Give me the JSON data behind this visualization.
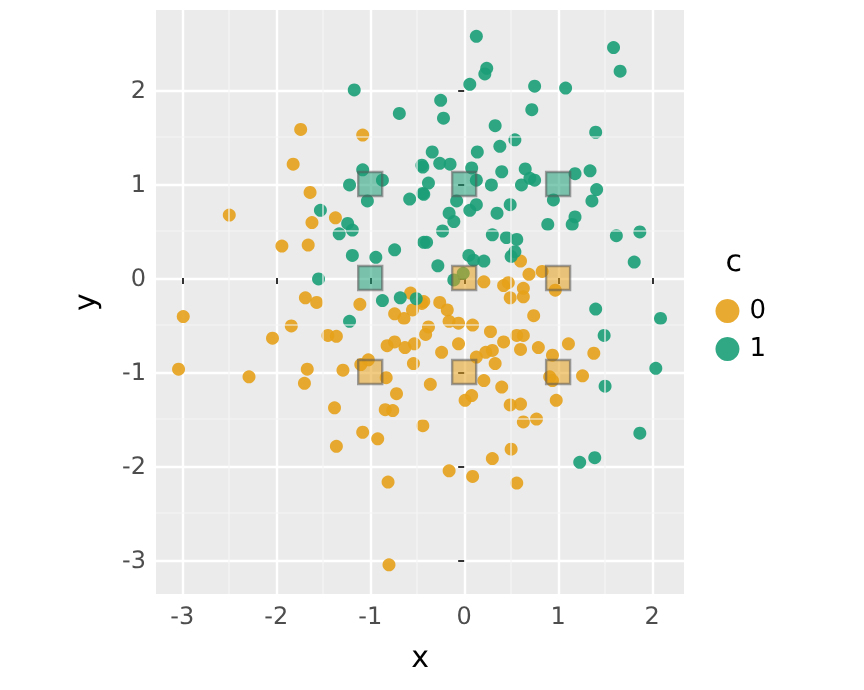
{
  "chart_data": {
    "type": "scatter",
    "xlabel": "x",
    "ylabel": "y",
    "legend_title": "c",
    "legend": "right",
    "grid": true,
    "marker": "circle",
    "xlim": [
      -3.28,
      2.34
    ],
    "ylim": [
      -3.36,
      2.85
    ],
    "xticks": [
      -3,
      -2,
      -1,
      0,
      1,
      2
    ],
    "yticks": [
      -3,
      -2,
      -1,
      0,
      1,
      2
    ],
    "series": [
      {
        "name": "0",
        "color": "#e6a11a",
        "x": [
          -1.74,
          -1.08,
          -1.82,
          -1.64,
          -2.5,
          -1.62,
          -1.37,
          -1.94,
          -1.66,
          -1.69,
          -1.57,
          -1.11,
          -0.57,
          -0.74,
          -0.64,
          -0.55,
          -0.45,
          -2.99,
          -1.84,
          -2.04,
          -1.45,
          -1.36,
          -0.82,
          -0.74,
          -0.63,
          -0.53,
          -0.41,
          -0.54,
          -1.1,
          -1.02,
          -3.04,
          -2.29,
          -1.67,
          -1.7,
          -1.29,
          -0.83,
          -0.72,
          -1.38,
          -0.84,
          -0.76,
          -0.44,
          -1.08,
          -0.92,
          -1.36,
          -0.81,
          -0.8,
          0.6,
          0.83,
          0.69,
          0.21,
          0.42,
          0.47,
          0.63,
          0.63,
          0.49,
          0.97,
          -0.43,
          -0.26,
          -0.18,
          -0.38,
          -0.16,
          -0.06,
          0.09,
          -0.24,
          -0.06,
          0.13,
          0.23,
          0.3,
          0.33,
          0.42,
          0.28,
          0.56,
          0.63,
          0.6,
          0.79,
          0.94,
          1.11,
          1.38,
          0.74,
          -0.36,
          0.01,
          0.08,
          0.21,
          0.4,
          0.49,
          0.6,
          0.91,
          0.94,
          0.98,
          1.26,
          0.63,
          0.77,
          0.5,
          0.3,
          -0.16,
          0.09,
          0.56
        ],
        "values": [
          1.58,
          1.52,
          1.21,
          0.91,
          0.67,
          0.59,
          0.64,
          0.34,
          0.35,
          -0.21,
          -0.26,
          -0.28,
          -0.16,
          -0.38,
          -0.43,
          -0.34,
          -0.27,
          -0.41,
          -0.51,
          -0.64,
          -0.61,
          -0.62,
          -0.72,
          -0.68,
          -0.74,
          -0.7,
          -0.6,
          -0.91,
          -0.92,
          -0.87,
          -0.97,
          -1.05,
          -0.97,
          -1.12,
          -0.98,
          -1.06,
          -1.23,
          -1.38,
          -1.4,
          -1.41,
          -1.57,
          -1.64,
          -1.71,
          -1.79,
          -2.17,
          -3.05,
          0.18,
          0.07,
          0.04,
          -0.04,
          -0.08,
          -0.05,
          -0.11,
          -0.2,
          -0.21,
          -0.13,
          -0.25,
          -0.26,
          -0.34,
          -0.52,
          -0.46,
          -0.48,
          -0.5,
          -0.79,
          -0.7,
          -0.84,
          -0.79,
          -0.77,
          -0.91,
          -0.68,
          -0.57,
          -0.61,
          -0.61,
          -0.76,
          -0.74,
          -0.82,
          -0.7,
          -0.8,
          -0.4,
          -1.13,
          -1.3,
          -1.25,
          -1.09,
          -1.16,
          -1.35,
          -1.34,
          -1.05,
          -1.09,
          -1.3,
          -1.04,
          -1.53,
          -1.5,
          -1.82,
          -1.92,
          -2.05,
          -2.11,
          -2.18
        ]
      },
      {
        "name": "1",
        "color": "#1b9e77",
        "x": [
          -1.17,
          -0.69,
          -1.08,
          -1.22,
          -0.87,
          -1.03,
          -0.45,
          -0.58,
          -0.44,
          -1.53,
          -1.24,
          -1.19,
          -1.33,
          -0.74,
          -0.43,
          -1.19,
          -0.94,
          -1.55,
          -0.87,
          -0.68,
          -0.51,
          -1.22,
          0.13,
          1.59,
          1.66,
          0.24,
          0.22,
          0.06,
          0.75,
          1.08,
          -0.25,
          -0.22,
          0.72,
          0.33,
          1.4,
          0.54,
          0.38,
          -0.34,
          0.14,
          -0.44,
          -0.26,
          -0.15,
          0.08,
          0.4,
          0.65,
          0.7,
          0.61,
          0.75,
          1.34,
          1.18,
          -0.38,
          0.13,
          0.29,
          -0.43,
          1.41,
          1.36,
          0.95,
          -0.08,
          0.13,
          0.06,
          0.49,
          -0.16,
          0.35,
          -0.11,
          1.18,
          1.15,
          0.89,
          -0.23,
          0.3,
          0.45,
          0.56,
          1.87,
          1.62,
          -0.4,
          0.54,
          0.5,
          0.05,
          0.1,
          0.21,
          -0.28,
          1.81,
          -0.01,
          -0.11,
          1.4,
          2.09,
          1.49,
          2.04,
          1.5,
          1.87,
          1.39,
          1.23
        ],
        "values": [
          2.0,
          1.75,
          1.15,
          0.99,
          1.04,
          0.82,
          1.2,
          0.84,
          0.9,
          0.72,
          0.58,
          0.51,
          0.47,
          0.3,
          0.38,
          0.24,
          0.22,
          -0.01,
          -0.24,
          -0.21,
          -0.22,
          -0.46,
          2.57,
          2.45,
          2.2,
          2.23,
          2.17,
          2.06,
          2.04,
          2.02,
          1.89,
          1.7,
          1.79,
          1.62,
          1.55,
          1.47,
          1.4,
          1.34,
          1.34,
          1.18,
          1.22,
          1.21,
          1.17,
          1.13,
          1.16,
          1.06,
          0.99,
          1.04,
          1.14,
          1.11,
          1.01,
          1.04,
          0.99,
          0.89,
          0.94,
          0.82,
          0.83,
          0.82,
          0.78,
          0.72,
          0.78,
          0.69,
          0.69,
          0.6,
          0.65,
          0.57,
          0.57,
          0.5,
          0.46,
          0.43,
          0.41,
          0.49,
          0.45,
          0.38,
          0.28,
          0.23,
          0.24,
          0.19,
          0.18,
          0.13,
          0.17,
          0.05,
          -0.02,
          -0.33,
          -0.43,
          -0.61,
          -0.96,
          -1.15,
          -1.65,
          -1.91,
          -1.96
        ]
      },
      {
        "color": "#e6a11a",
        "marker": "square",
        "x": [
          0,
          1,
          -1,
          0,
          1
        ],
        "values": [
          0,
          0,
          -1,
          -1,
          -1
        ]
      },
      {
        "color": "#1b9e77",
        "marker": "square",
        "x": [
          -1,
          0,
          1,
          -1
        ],
        "values": [
          1,
          1,
          1,
          0
        ]
      }
    ]
  }
}
